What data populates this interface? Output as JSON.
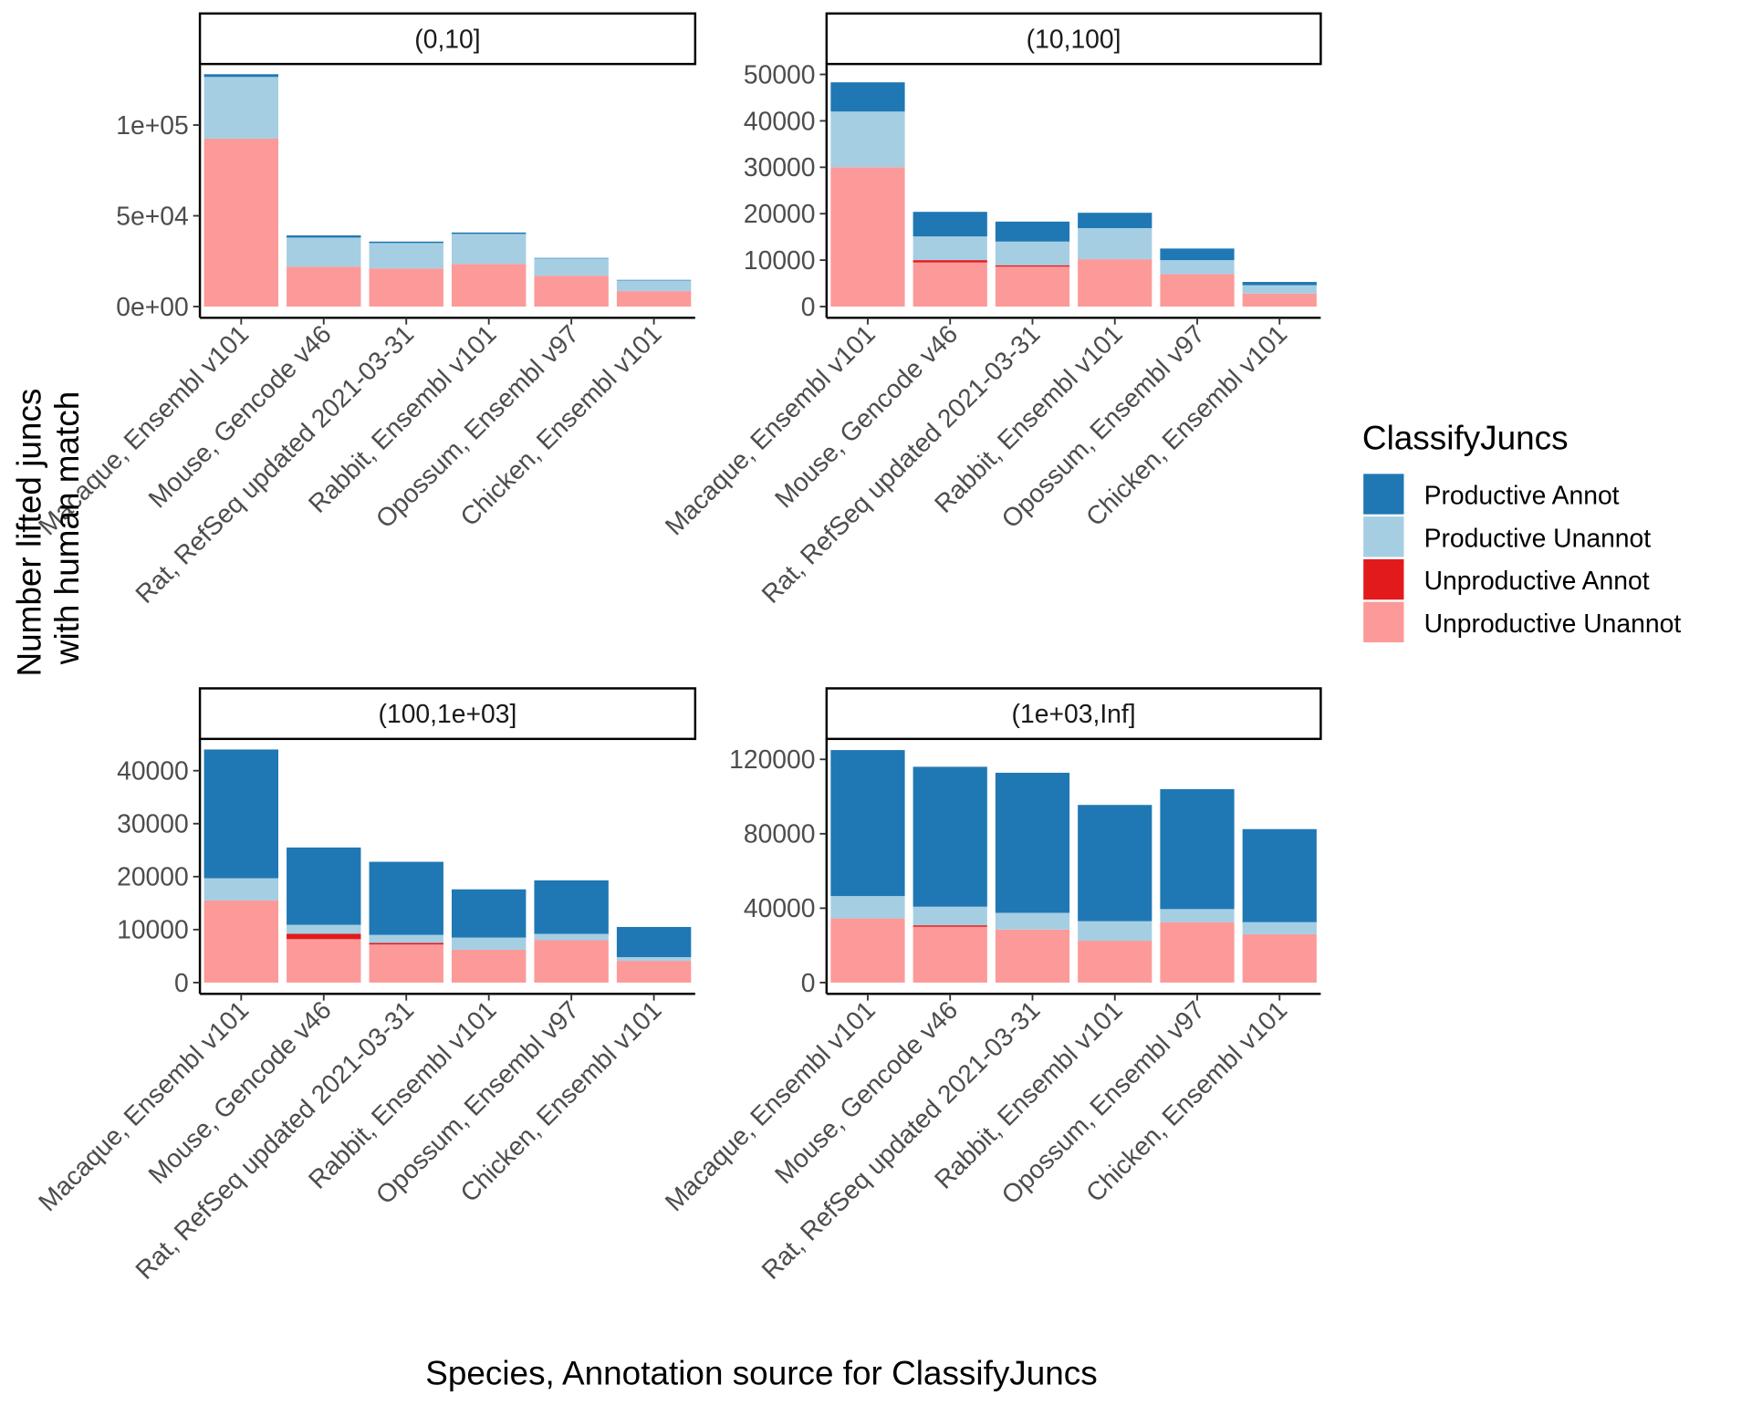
{
  "figure": {
    "ylabel_line1": "Number lifted juncs",
    "ylabel_line2": "with human match",
    "xlabel": "Species, Annotation source for ClassifyJuncs"
  },
  "legend": {
    "title": "ClassifyJuncs",
    "items": [
      {
        "label": "Productive Annot",
        "color": "#1F78B4"
      },
      {
        "label": "Productive Unannot",
        "color": "#A6CEE3"
      },
      {
        "label": "Unproductive Annot",
        "color": "#E31A1C"
      },
      {
        "label": "Unproductive Unannot",
        "color": "#FB9A99"
      }
    ]
  },
  "chart_data": [
    {
      "type": "bar",
      "stacked": true,
      "panel": "(0,10]",
      "categories": [
        "Macaque, Ensembl v101",
        "Mouse, Gencode v46",
        "Rat, RefSeq updated 2021-03-31",
        "Rabbit, Ensembl v101",
        "Opossum, Ensembl v97",
        "Chicken, Ensembl v101"
      ],
      "ylim": [
        0,
        133000
      ],
      "yticks": [
        0,
        50000,
        100000
      ],
      "ytick_labels": [
        "0e+00",
        "5e+04",
        "1e+05"
      ],
      "series": [
        {
          "name": "Unproductive Unannot",
          "values": [
            92500,
            22000,
            21000,
            23500,
            17000,
            8500
          ]
        },
        {
          "name": "Unproductive Annot",
          "values": [
            0,
            0,
            0,
            0,
            0,
            0
          ]
        },
        {
          "name": "Productive Unannot",
          "values": [
            34000,
            16000,
            14000,
            16500,
            9500,
            6000
          ]
        },
        {
          "name": "Productive Annot",
          "values": [
            1500,
            1200,
            800,
            800,
            300,
            200
          ]
        }
      ]
    },
    {
      "type": "bar",
      "stacked": true,
      "panel": "(10,100]",
      "categories": [
        "Macaque, Ensembl v101",
        "Mouse, Gencode v46",
        "Rat, RefSeq updated 2021-03-31",
        "Rabbit, Ensembl v101",
        "Opossum, Ensembl v97",
        "Chicken, Ensembl v101"
      ],
      "ylim": [
        0,
        52000
      ],
      "yticks": [
        0,
        10000,
        20000,
        30000,
        40000,
        50000
      ],
      "ytick_labels": [
        "0",
        "10000",
        "20000",
        "30000",
        "40000",
        "50000"
      ],
      "series": [
        {
          "name": "Unproductive Unannot",
          "values": [
            30000,
            9500,
            8600,
            10200,
            7000,
            2800
          ]
        },
        {
          "name": "Unproductive Annot",
          "values": [
            0,
            500,
            300,
            0,
            0,
            0
          ]
        },
        {
          "name": "Productive Unannot",
          "values": [
            12000,
            5100,
            5100,
            6700,
            3000,
            1800
          ]
        },
        {
          "name": "Productive Annot",
          "values": [
            6300,
            5300,
            4300,
            3300,
            2500,
            700
          ]
        }
      ]
    },
    {
      "type": "bar",
      "stacked": true,
      "panel": "(100,1e+03]",
      "categories": [
        "Macaque, Ensembl v101",
        "Mouse, Gencode v46",
        "Rat, RefSeq updated 2021-03-31",
        "Rabbit, Ensembl v101",
        "Opossum, Ensembl v97",
        "Chicken, Ensembl v101"
      ],
      "ylim": [
        0,
        46000
      ],
      "yticks": [
        0,
        10000,
        20000,
        30000,
        40000
      ],
      "ytick_labels": [
        "0",
        "10000",
        "20000",
        "30000",
        "40000"
      ],
      "series": [
        {
          "name": "Unproductive Unannot",
          "values": [
            15500,
            8200,
            7200,
            6200,
            8000,
            4100
          ]
        },
        {
          "name": "Unproductive Annot",
          "values": [
            0,
            1000,
            300,
            0,
            0,
            0
          ]
        },
        {
          "name": "Productive Unannot",
          "values": [
            4200,
            1700,
            1500,
            2300,
            1200,
            700
          ]
        },
        {
          "name": "Productive Annot",
          "values": [
            24300,
            14600,
            13800,
            9100,
            10100,
            5700
          ]
        }
      ]
    },
    {
      "type": "bar",
      "stacked": true,
      "panel": "(1e+03,Inf]",
      "categories": [
        "Macaque, Ensembl v101",
        "Mouse, Gencode v46",
        "Rat, RefSeq updated 2021-03-31",
        "Rabbit, Ensembl v101",
        "Opossum, Ensembl v97",
        "Chicken, Ensembl v101"
      ],
      "ylim": [
        0,
        131000
      ],
      "yticks": [
        0,
        40000,
        80000,
        120000
      ],
      "ytick_labels": [
        "0",
        "40000",
        "80000",
        "120000"
      ],
      "series": [
        {
          "name": "Unproductive Unannot",
          "values": [
            34500,
            30000,
            28500,
            22500,
            32500,
            26000
          ]
        },
        {
          "name": "Unproductive Annot",
          "values": [
            0,
            800,
            0,
            0,
            0,
            0
          ]
        },
        {
          "name": "Productive Unannot",
          "values": [
            12000,
            10000,
            9000,
            10500,
            7000,
            6500
          ]
        },
        {
          "name": "Productive Annot",
          "values": [
            78500,
            75200,
            75300,
            62500,
            64500,
            50000
          ]
        }
      ]
    }
  ]
}
